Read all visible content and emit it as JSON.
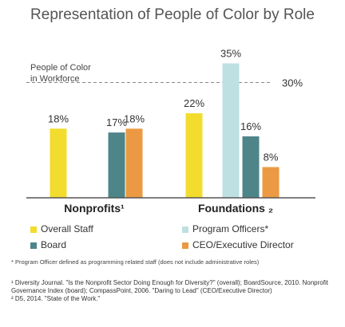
{
  "chart_data": {
    "type": "bar",
    "title": "Representation of People of Color by Role",
    "categories": [
      "Nonprofits",
      "Foundations"
    ],
    "category_labels": [
      "Nonprofits¹",
      "Foundations ₂"
    ],
    "series": [
      {
        "name": "Overall Staff",
        "values": [
          18,
          22
        ],
        "labels": [
          "18%",
          "22%"
        ],
        "color": "#f2dc2e"
      },
      {
        "name": "Program Officers*",
        "values": [
          null,
          35
        ],
        "labels": [
          "",
          "35%"
        ],
        "color": "#bfe0e3"
      },
      {
        "name": "Board",
        "values": [
          17,
          16
        ],
        "labels": [
          "17%",
          "16%"
        ],
        "color": "#4e8589"
      },
      {
        "name": "CEO/Executive Director",
        "values": [
          18,
          8
        ],
        "labels": [
          "18%",
          "8%"
        ],
        "color": "#eb9a43"
      }
    ],
    "reference_line": {
      "value": 30,
      "label": "30%",
      "annotation": [
        "People of Color",
        "in Workforce"
      ]
    },
    "ylim": [
      0,
      38
    ],
    "legend_position": "bottom"
  },
  "footnote": "* Program Officer defined as programming related staff (does not include administrative roles)",
  "sources": [
    "¹ Diversity Journal. \"Is the Nonprofit Sector Doing Enough for Diversity?\" (overall); BoardSource, 2010. Nonprofit Governance Index (board); CompassPoint, 2006. \"Daring to Lead\" (CEO/Executive Director)",
    "² D5, 2014. \"State of the Work.\""
  ]
}
